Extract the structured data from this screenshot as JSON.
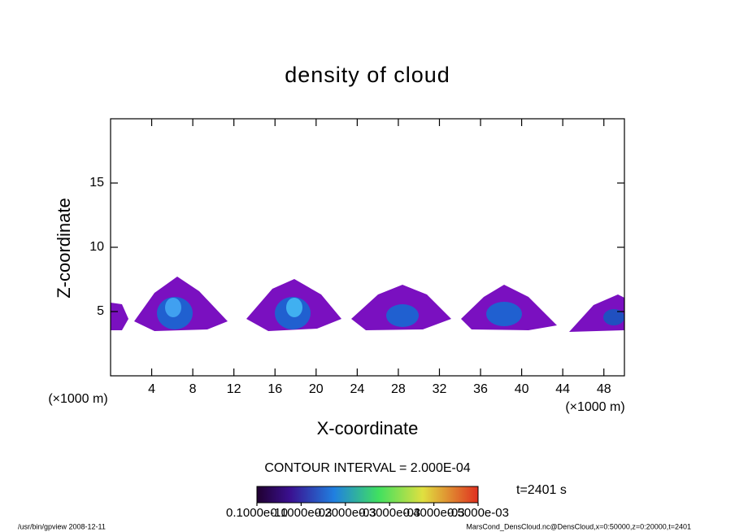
{
  "chart_data": {
    "type": "contour",
    "title": "density of cloud",
    "x_label": "X-coordinate",
    "y_label": "Z-coordinate",
    "x_unit": "(×1000 m)",
    "xlim": [
      0,
      50
    ],
    "xticks": [
      4,
      8,
      12,
      16,
      20,
      24,
      28,
      32,
      36,
      40,
      44,
      48
    ],
    "ylim": [
      0,
      20
    ],
    "yticks": [
      5,
      10,
      15
    ],
    "contour_interval": "CONTOUR INTERVAL = 2.000E-04",
    "time": "t=2401 s",
    "clim": [
      0,
      0.0005
    ],
    "cticks": [
      {
        "value": 0,
        "label": "0.1000e-10"
      },
      {
        "value": 0.0001,
        "label": "0.1000e-03"
      },
      {
        "value": 0.0002,
        "label": "0.2000e-03"
      },
      {
        "value": 0.0003,
        "label": "0.3000e-03"
      },
      {
        "value": 0.0004,
        "label": "0.4000e-03"
      },
      {
        "value": 0.0005,
        "label": "0.5000e-03"
      }
    ],
    "footer_left": "/usr/bin/gpview  2008-12-11",
    "footer_right": "MarsCond_DensCloud.nc@DensCloud,x=0:50000,z=0:20000,t=2401"
  }
}
